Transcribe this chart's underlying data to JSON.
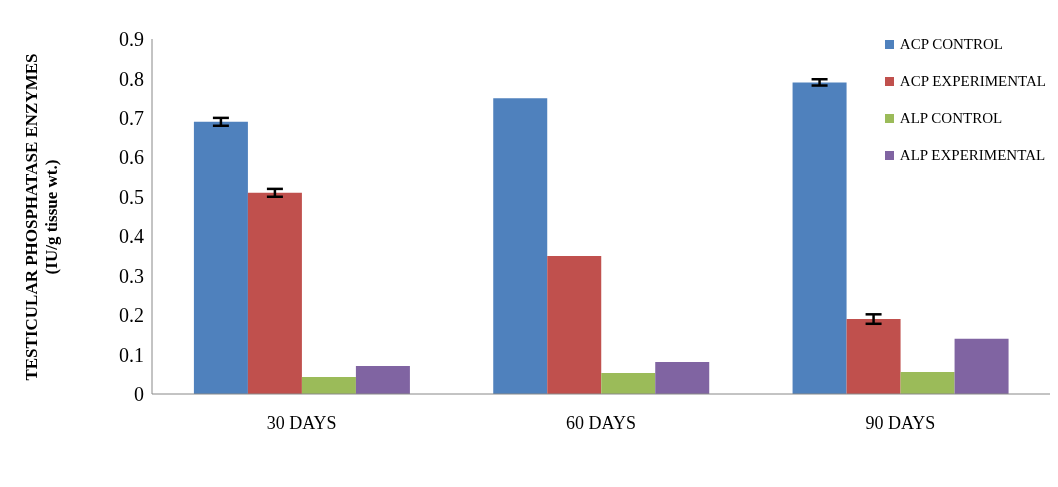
{
  "chart_data": {
    "type": "bar",
    "ylabel": "TESTICULAR PHOSPHATASE ENZYMES (IU/g tissue wt.)",
    "categories": [
      "30 DAYS",
      "60 DAYS",
      "90 DAYS"
    ],
    "series": [
      {
        "name": "ACP CONTROL",
        "color": "#4f81bd",
        "values": [
          0.69,
          0.75,
          0.79
        ],
        "errors": [
          0.01,
          null,
          0.008
        ]
      },
      {
        "name": "ACP EXPERIMENTAL",
        "color": "#c0504d",
        "values": [
          0.51,
          0.35,
          0.19
        ],
        "errors": [
          0.01,
          null,
          0.012
        ]
      },
      {
        "name": "ALP CONTROL",
        "color": "#9bbb59",
        "values": [
          0.043,
          0.053,
          0.056
        ]
      },
      {
        "name": "ALP EXPERIMENTAL",
        "color": "#8064a2",
        "values": [
          0.071,
          0.081,
          0.14
        ]
      }
    ],
    "ylim": [
      0,
      0.9
    ],
    "yticks": [
      0,
      0.1,
      0.2,
      0.3,
      0.4,
      0.5,
      0.6,
      0.7,
      0.8,
      0.9
    ],
    "grid": false,
    "legend": "top right"
  }
}
